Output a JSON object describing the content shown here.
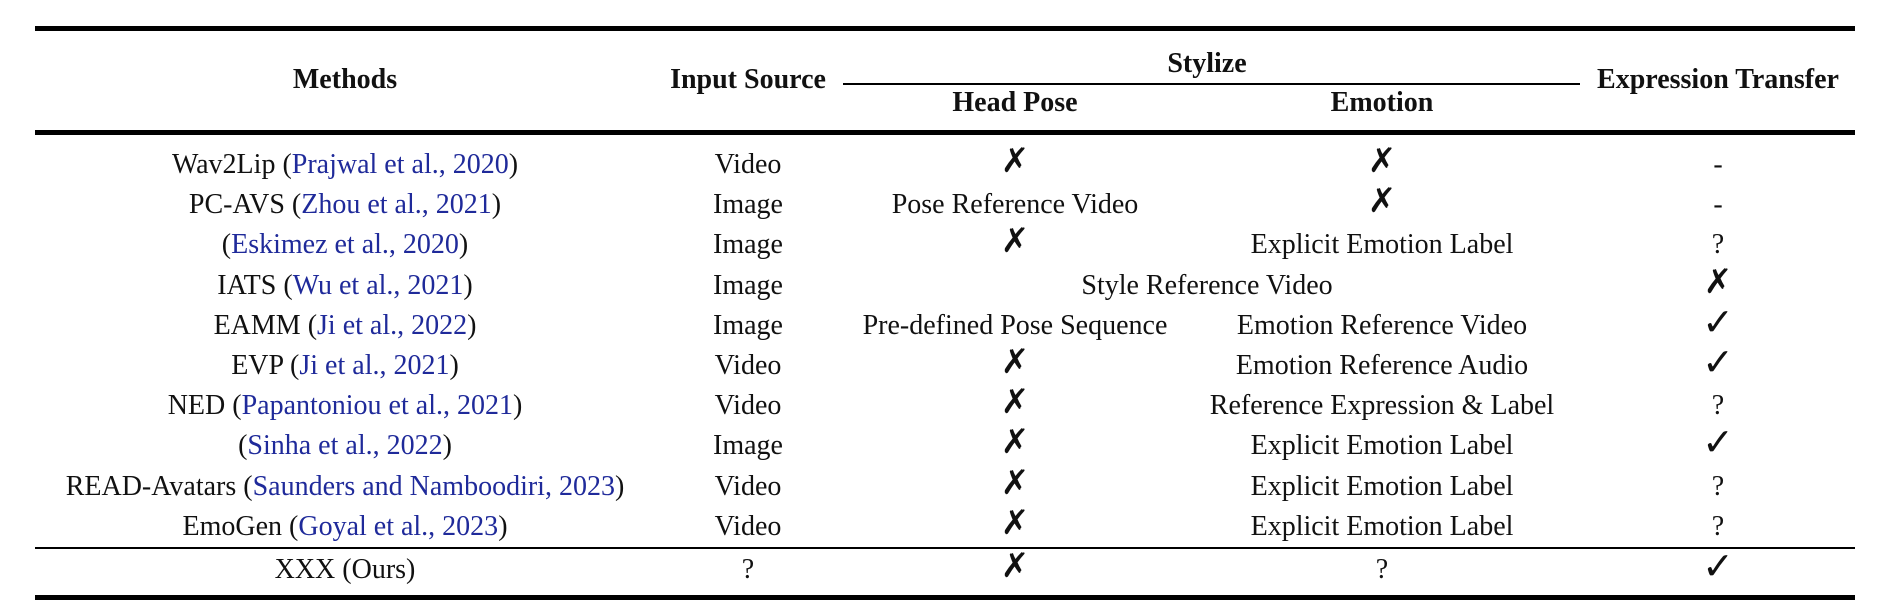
{
  "header": {
    "methods": "Methods",
    "input_source": "Input Source",
    "stylize": "Stylize",
    "head_pose": "Head Pose",
    "emotion": "Emotion",
    "expression_transfer": "Expression Transfer"
  },
  "symbols": {
    "cross": "✗",
    "check": "✓",
    "dash": "-",
    "question": "?"
  },
  "rows": [
    {
      "name": "Wav2Lip",
      "open": " (",
      "cite": "Prajwal et al., 2020",
      "close": ")",
      "input": "Video",
      "head_pose": "✗",
      "emotion": "✗",
      "expr": "-"
    },
    {
      "name": "PC-AVS",
      "open": " (",
      "cite": "Zhou et al., 2021",
      "close": ")",
      "input": "Image",
      "head_pose": "Pose Reference Video",
      "emotion": "✗",
      "expr": "-"
    },
    {
      "name": "",
      "open": "(",
      "cite": "Eskimez et al., 2020",
      "close": ")",
      "input": "Image",
      "head_pose": "✗",
      "emotion": "Explicit Emotion Label",
      "expr": "?"
    },
    {
      "name": "IATS",
      "open": " (",
      "cite": "Wu et al., 2021",
      "close": ")",
      "input": "Image",
      "stylize_merged": "Style Reference Video",
      "expr": "✗"
    },
    {
      "name": "EAMM",
      "open": " (",
      "cite": "Ji et al., 2022",
      "close": ")",
      "input": "Image",
      "head_pose": "Pre-defined Pose Sequence",
      "emotion": "Emotion Reference Video",
      "expr": "✓"
    },
    {
      "name": "EVP",
      "open": " (",
      "cite": "Ji et al., 2021",
      "close": ")",
      "input": "Video",
      "head_pose": "✗",
      "emotion": "Emotion Reference Audio",
      "expr": "✓"
    },
    {
      "name": "NED",
      "open": " (",
      "cite": "Papantoniou et al., 2021",
      "close": ")",
      "input": "Video",
      "head_pose": "✗",
      "emotion": "Reference Expression & Label",
      "expr": "?"
    },
    {
      "name": "",
      "open": "(",
      "cite": "Sinha et al., 2022",
      "close": ")",
      "input": "Image",
      "head_pose": "✗",
      "emotion": "Explicit Emotion Label",
      "expr": "✓"
    },
    {
      "name": "READ-Avatars",
      "open": " (",
      "cite": "Saunders and Namboodiri, 2023",
      "close": ")",
      "input": "Video",
      "head_pose": "✗",
      "emotion": "Explicit Emotion Label",
      "expr": "?"
    },
    {
      "name": "EmoGen",
      "open": " (",
      "cite": "Goyal et al., 2023",
      "close": ")",
      "input": "Video",
      "head_pose": "✗",
      "emotion": "Explicit Emotion Label",
      "expr": "?"
    }
  ],
  "ours": {
    "name": "XXX (Ours)",
    "input": "?",
    "head_pose": "✗",
    "emotion": "?",
    "expr": "✓"
  }
}
